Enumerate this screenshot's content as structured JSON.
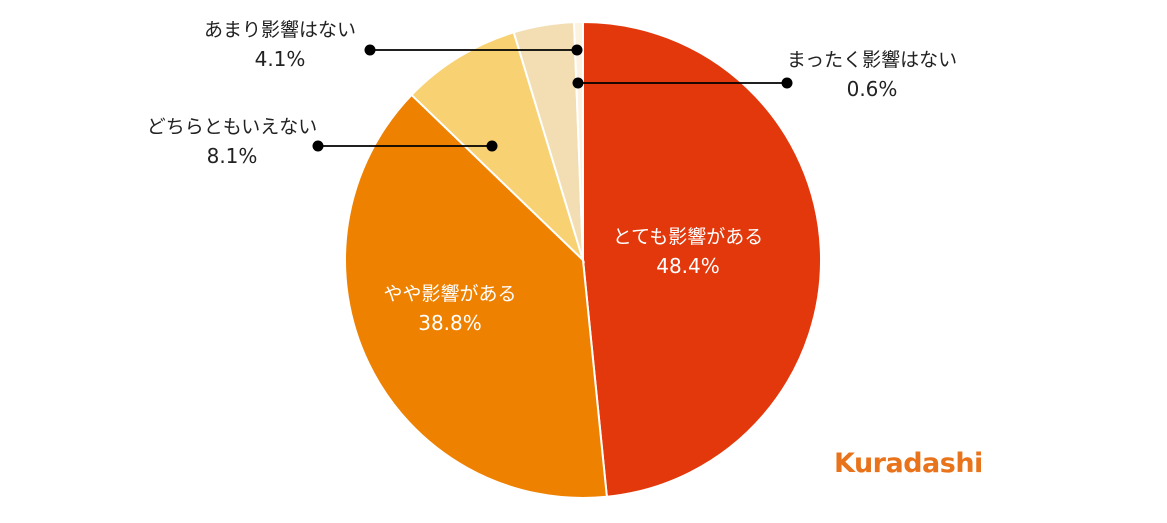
{
  "chart_data": {
    "type": "pie",
    "slices": [
      {
        "label": "とても影響がある",
        "value": 48.4,
        "value_label": "48.4%",
        "color": "#e2380c",
        "label_position": "inside"
      },
      {
        "label": "やや影響がある",
        "value": 38.8,
        "value_label": "38.8%",
        "color": "#ef8100",
        "label_position": "inside"
      },
      {
        "label": "どちらともいえない",
        "value": 8.1,
        "value_label": "8.1%",
        "color": "#f8d173",
        "label_position": "callout-left"
      },
      {
        "label": "あまり影響はない",
        "value": 4.1,
        "value_label": "4.1%",
        "color": "#f2deb2",
        "label_position": "callout-left"
      },
      {
        "label": "まったく影響はない",
        "value": 0.6,
        "value_label": "0.6%",
        "color": "#fbf2df",
        "label_position": "callout-right"
      }
    ],
    "start": "12 o'clock",
    "direction": "clockwise",
    "legend": "none"
  },
  "logo": {
    "text": "Kuradashi",
    "color": "#e8731a"
  }
}
